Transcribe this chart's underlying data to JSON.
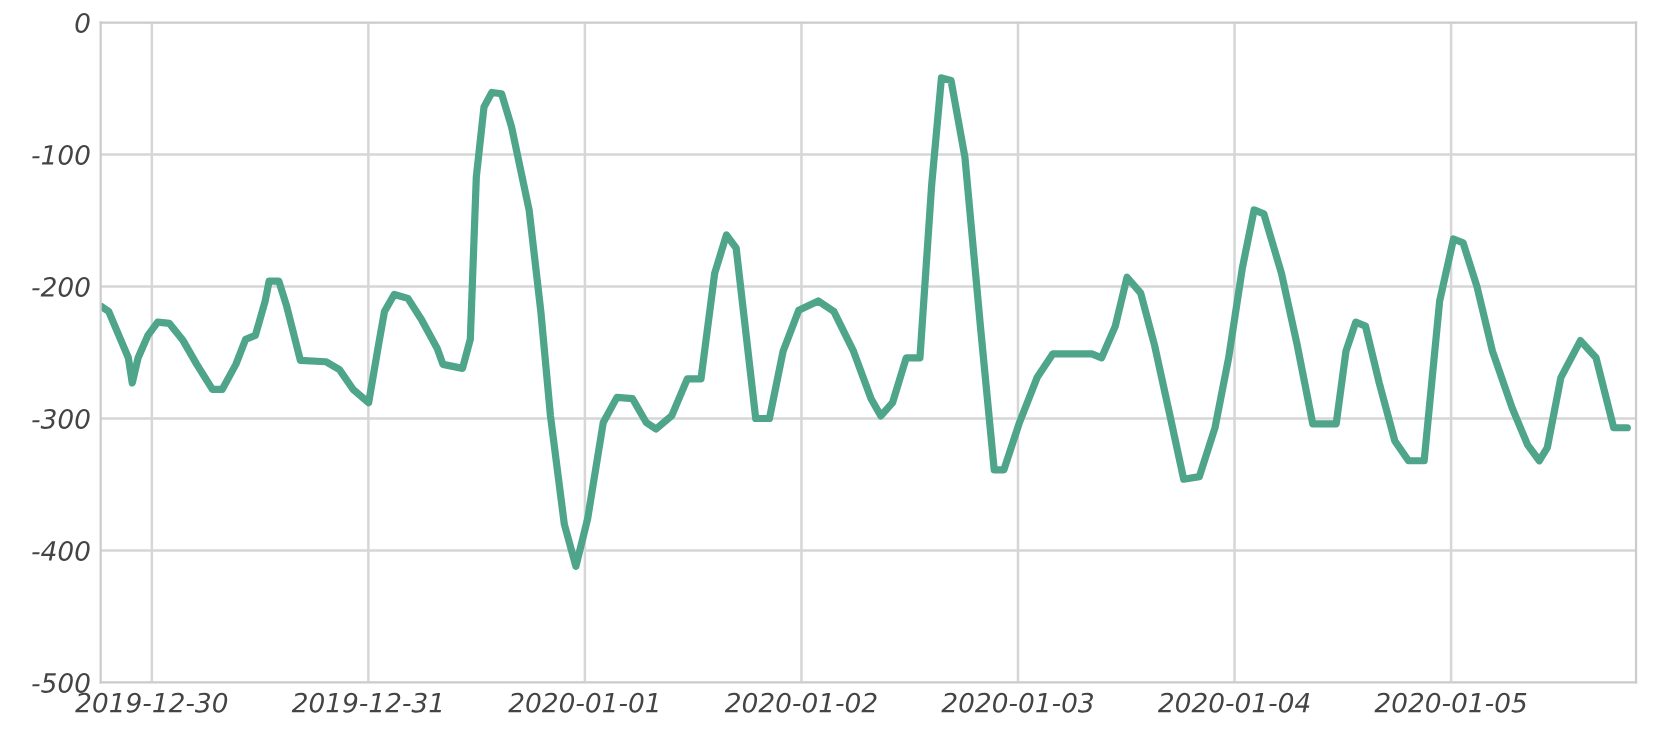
{
  "chart_data": {
    "type": "line",
    "x": [
      "2019-12-29T18:22",
      "2019-12-29T19:14",
      "2019-12-29T20:32",
      "2019-12-29T21:24",
      "2019-12-29T21:50",
      "2019-12-29T22:29",
      "2019-12-29T23:34",
      "2019-12-30T00:39",
      "2019-12-30T01:57",
      "2019-12-30T03:28",
      "2019-12-30T04:59",
      "2019-12-30T06:43",
      "2019-12-30T07:48",
      "2019-12-30T09:19",
      "2019-12-30T10:24",
      "2019-12-30T11:29",
      "2019-12-30T12:34",
      "2019-12-30T13:00",
      "2019-12-30T14:05",
      "2019-12-30T14:57",
      "2019-12-30T16:28",
      "2019-12-30T19:17",
      "2019-12-30T20:48",
      "2019-12-30T22:19",
      "2019-12-31T00:02",
      "2019-12-31T01:08",
      "2019-12-31T01:47",
      "2019-12-31T02:52",
      "2019-12-31T04:23",
      "2019-12-31T05:53",
      "2019-12-31T07:38",
      "2019-12-31T08:16",
      "2019-12-31T10:26",
      "2019-12-31T11:18",
      "2019-12-31T11:58",
      "2019-12-31T12:49",
      "2019-12-31T13:41",
      "2019-12-31T14:46",
      "2019-12-31T15:52",
      "2019-12-31T17:49",
      "2019-12-31T19:07",
      "2019-12-31T20:11",
      "2019-12-31T21:43",
      "2019-12-31T23:00",
      "2020-01-01T00:18",
      "2020-01-01T02:02",
      "2020-01-01T03:33",
      "2020-01-01T05:17",
      "2020-01-01T06:48",
      "2020-01-01T07:53",
      "2020-01-01T09:37",
      "2020-01-01T11:21",
      "2020-01-01T12:52",
      "2020-01-01T14:23",
      "2020-01-01T15:41",
      "2020-01-01T16:46",
      "2020-01-01T18:56",
      "2020-01-01T20:27",
      "2020-01-01T21:58",
      "2020-01-01T23:42",
      "2020-01-02T01:52",
      "2020-01-02T03:36",
      "2020-01-02T05:46",
      "2020-01-02T07:43",
      "2020-01-02T08:48",
      "2020-01-02T10:06",
      "2020-01-02T11:37",
      "2020-01-02T13:08",
      "2020-01-02T14:26",
      "2020-01-02T15:31",
      "2020-01-02T16:35",
      "2020-01-02T18:07",
      "2020-01-02T19:50",
      "2020-01-02T21:22",
      "2020-01-02T22:26",
      "2020-01-03T00:10",
      "2020-01-03T02:07",
      "2020-01-03T03:52",
      "2020-01-03T08:11",
      "2020-01-03T09:16",
      "2020-01-03T10:47",
      "2020-01-03T12:05",
      "2020-01-03T13:36",
      "2020-01-03T15:07",
      "2020-01-03T16:51",
      "2020-01-03T18:22",
      "2020-01-03T20:06",
      "2020-01-03T21:50",
      "2020-01-03T23:21",
      "2020-01-04T00:52",
      "2020-01-04T02:10",
      "2020-01-04T03:15",
      "2020-01-04T05:12",
      "2020-01-04T06:56",
      "2020-01-04T08:40",
      "2020-01-04T11:16",
      "2020-01-04T12:21",
      "2020-01-04T13:26",
      "2020-01-04T14:31",
      "2020-01-04T16:02",
      "2020-01-04T17:46",
      "2020-01-04T19:17",
      "2020-01-04T21:01",
      "2020-01-04T22:44",
      "2020-01-05T00:16",
      "2020-01-05T01:20",
      "2020-01-05T02:52",
      "2020-01-05T04:35",
      "2020-01-05T06:46",
      "2020-01-05T08:29",
      "2020-01-05T09:47",
      "2020-01-05T10:40",
      "2020-01-05T12:10",
      "2020-01-05T14:20",
      "2020-01-05T16:04",
      "2020-01-05T18:01",
      "2020-01-05T19:32"
    ],
    "series": [
      {
        "color": "#4fa58a",
        "values": [
          -215,
          -219,
          -240,
          -254,
          -273,
          -254,
          -237,
          -227,
          -228,
          -241,
          -259,
          -278,
          -278,
          -259,
          -240,
          -237,
          -211,
          -196,
          -196,
          -215,
          -256,
          -257,
          -263,
          -278,
          -288,
          -244,
          -219,
          -206,
          -209,
          -225,
          -247,
          -259,
          -262,
          -240,
          -117,
          -64,
          -53,
          -54,
          -79,
          -142,
          -219,
          -298,
          -380,
          -412,
          -376,
          -303,
          -284,
          -285,
          -303,
          -308,
          -298,
          -270,
          -270,
          -190,
          -161,
          -171,
          -300,
          -300,
          -249,
          -218,
          -211,
          -219,
          -249,
          -285,
          -298,
          -288,
          -254,
          -254,
          -123,
          -42,
          -44,
          -102,
          -230,
          -339,
          -339,
          -303,
          -269,
          -251,
          -251,
          -254,
          -230,
          -193,
          -205,
          -244,
          -298,
          -346,
          -344,
          -307,
          -254,
          -186,
          -142,
          -145,
          -190,
          -244,
          -304,
          -304,
          -249,
          -227,
          -230,
          -273,
          -317,
          -332,
          -332,
          -211,
          -164,
          -167,
          -200,
          -249,
          -292,
          -320,
          -332,
          -322,
          -269,
          -241,
          -254,
          -307,
          -307
        ]
      }
    ],
    "xlim": [
      "2019-12-29T18:20",
      "2020-01-05T20:30"
    ],
    "xticks": [
      "2019-12-30",
      "2019-12-31",
      "2020-01-01",
      "2020-01-02",
      "2020-01-03",
      "2020-01-04",
      "2020-01-05"
    ],
    "ylim": [
      -500,
      0
    ],
    "yticks": [
      -500,
      -400,
      -300,
      -200,
      -100,
      0
    ],
    "grid": true,
    "line_style": "solid",
    "marker": "none"
  }
}
